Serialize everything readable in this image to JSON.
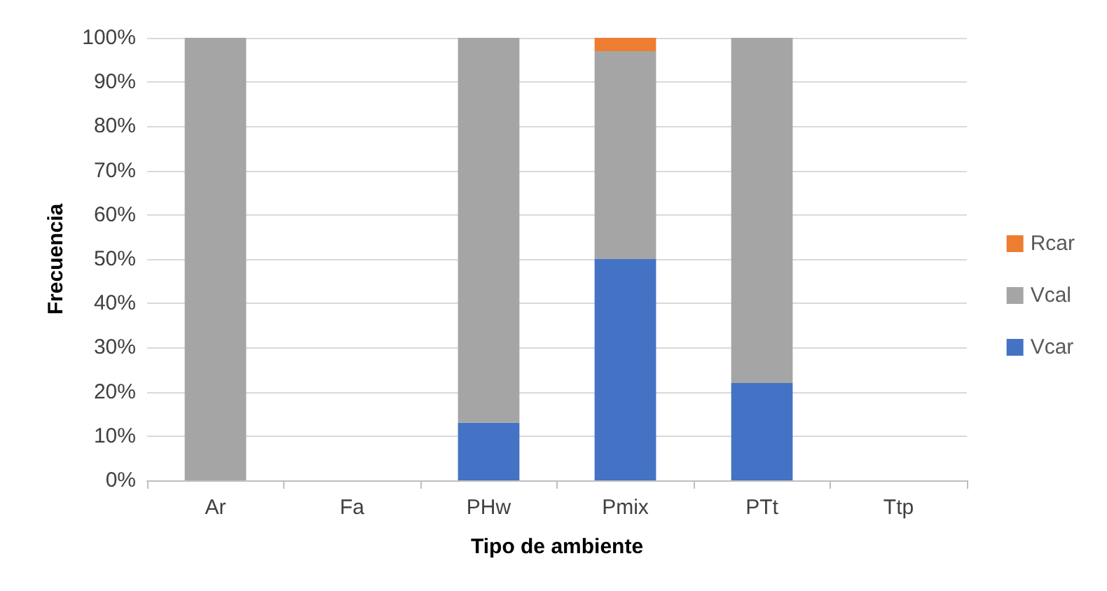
{
  "chart_data": {
    "type": "bar",
    "stacked": true,
    "xlabel": "Tipo de ambiente",
    "ylabel": "Frecuencia",
    "categories": [
      "Ar",
      "Fa",
      "PHw",
      "Pmix",
      "PTt",
      "Ttp"
    ],
    "series": [
      {
        "name": "Vcar",
        "color": "#4472c4",
        "values": [
          null,
          null,
          13,
          50,
          22,
          null
        ]
      },
      {
        "name": "Vcal",
        "color": "#a5a5a5",
        "values": [
          100,
          null,
          87,
          47,
          78,
          null
        ]
      },
      {
        "name": "Rcar",
        "color": "#ed7d31",
        "values": [
          null,
          null,
          null,
          3,
          null,
          null
        ]
      }
    ],
    "ylim": [
      0,
      100
    ],
    "yticks": [
      {
        "value": 0,
        "label": "0%"
      },
      {
        "value": 10,
        "label": "10%"
      },
      {
        "value": 20,
        "label": "20%"
      },
      {
        "value": 30,
        "label": "30%"
      },
      {
        "value": 40,
        "label": "40%"
      },
      {
        "value": 50,
        "label": "50%"
      },
      {
        "value": 60,
        "label": "60%"
      },
      {
        "value": 70,
        "label": "70%"
      },
      {
        "value": 80,
        "label": "80%"
      },
      {
        "value": 90,
        "label": "90%"
      },
      {
        "value": 100,
        "label": "100%"
      }
    ],
    "grid": "y",
    "legend": "right"
  }
}
